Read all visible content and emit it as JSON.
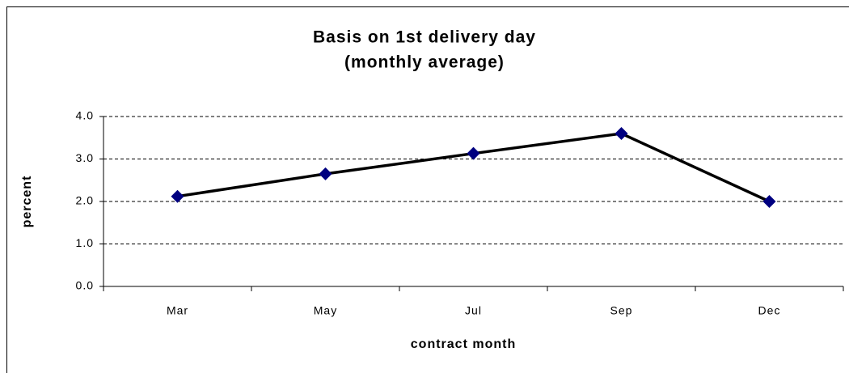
{
  "chart_data": {
    "type": "line",
    "title": [
      "Basis on 1st delivery day",
      "(monthly average)"
    ],
    "xlabel": "contract month",
    "ylabel": "percent",
    "categories": [
      "Mar",
      "May",
      "Jul",
      "Sep",
      "Dec"
    ],
    "series": [
      {
        "color": "#000000",
        "marker_color": "#000080",
        "values": [
          2.12,
          2.65,
          3.13,
          3.6,
          2.0
        ]
      }
    ],
    "ylim": [
      0,
      4
    ],
    "yticks": [
      {
        "value": 0,
        "label": "0.0"
      },
      {
        "value": 1,
        "label": "1.0"
      },
      {
        "value": 2,
        "label": "2.0"
      },
      {
        "value": 3,
        "label": "3.0"
      },
      {
        "value": 4,
        "label": "4.0"
      }
    ],
    "grid": true
  }
}
